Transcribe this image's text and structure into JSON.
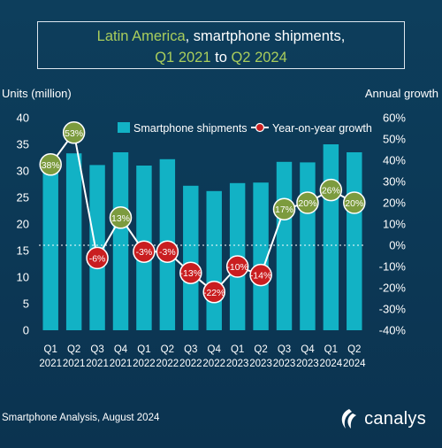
{
  "title": {
    "part1": "Latin America",
    "part2": ", smartphone shipments,",
    "line2_start": "Q1 2021",
    "line2_mid": " to ",
    "line2_end": "Q2 2024"
  },
  "footer": "Smartphone Analysis, August 2024",
  "brand": "canalys",
  "colors": {
    "background": "#0d3e5c",
    "bar": "#12b2c5",
    "line": "#ffffff",
    "marker_positive": "#7c9b3e",
    "marker_negative": "#c91e20",
    "highlight": "#a9cd5c"
  },
  "chart_data": {
    "type": "bar",
    "categories": [
      "Q1 2021",
      "Q2 2021",
      "Q3 2021",
      "Q4 2021",
      "Q1 2022",
      "Q2 2022",
      "Q3 2022",
      "Q4 2022",
      "Q1 2023",
      "Q2 2023",
      "Q3 2023",
      "Q4 2023",
      "Q1 2024",
      "Q2 2024"
    ],
    "category_lines": [
      [
        "Q1",
        "2021"
      ],
      [
        "Q2",
        "2021"
      ],
      [
        "Q3",
        "2021"
      ],
      [
        "Q4",
        "2021"
      ],
      [
        "Q1",
        "2022"
      ],
      [
        "Q2",
        "2022"
      ],
      [
        "Q3",
        "2022"
      ],
      [
        "Q4",
        "2022"
      ],
      [
        "Q1",
        "2023"
      ],
      [
        "Q2",
        "2023"
      ],
      [
        "Q3",
        "2023"
      ],
      [
        "Q4",
        "2023"
      ],
      [
        "Q1",
        "2024"
      ],
      [
        "Q2",
        "2024"
      ]
    ],
    "series": [
      {
        "name": "Smartphone shipments",
        "type": "bar",
        "axis": "left",
        "values": [
          32.0,
          33.3,
          31.1,
          33.5,
          31.0,
          32.2,
          27.2,
          26.2,
          27.7,
          27.8,
          31.7,
          31.6,
          35.0,
          33.5
        ]
      },
      {
        "name": "Year-on-year growth",
        "type": "line",
        "axis": "right",
        "values": [
          38,
          53,
          -6,
          13,
          -3,
          -3,
          -13,
          -22,
          -10,
          -14,
          17,
          20,
          26,
          20
        ],
        "labels": [
          "38%",
          "53%",
          "-6%",
          "13%",
          "-3%",
          "-3%",
          "-13%",
          "-22%",
          "-10%",
          "-14%",
          "17%",
          "20%",
          "26%",
          "20%"
        ]
      }
    ],
    "ylabel": "Units (million)",
    "y2label": "Annual growth",
    "ylim": [
      0,
      40
    ],
    "y2lim": [
      -40,
      60
    ],
    "yticks": [
      "0",
      "5",
      "10",
      "15",
      "20",
      "25",
      "30",
      "35",
      "40"
    ],
    "y2ticks": [
      "-40%",
      "-30%",
      "-20%",
      "-10%",
      "0%",
      "10%",
      "20%",
      "30%",
      "40%",
      "50%",
      "60%"
    ],
    "legend_position": "top-right",
    "zero_growth_line": "dashed"
  }
}
